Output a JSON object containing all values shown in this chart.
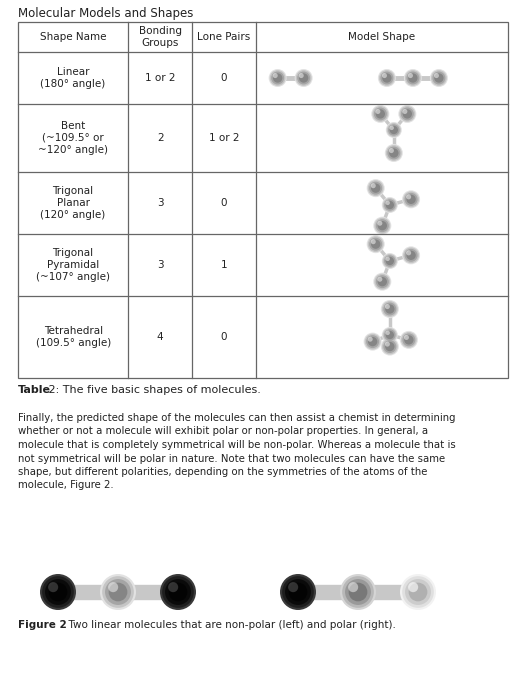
{
  "title": "Molecular Models and Shapes",
  "table_caption_bold": "Table",
  "table_caption_rest": " 2: The five basic shapes of molecules.",
  "figure_caption_bold": "Figure 2",
  "figure_caption_rest": "  Two linear molecules that are non-polar (left) and polar (right).",
  "col_headers": [
    "Shape Name",
    "Bonding\nGroups",
    "Lone Pairs",
    "Model Shape"
  ],
  "rows": [
    {
      "name": "Linear\n(180° angle)",
      "bonding": "1 or 2",
      "lone": "0",
      "shape": "linear"
    },
    {
      "name": "Bent\n(~109.5° or\n~120° angle)",
      "bonding": "2",
      "lone": "1 or 2",
      "shape": "bent"
    },
    {
      "name": "Trigonal\nPlanar\n(120° angle)",
      "bonding": "3",
      "lone": "0",
      "shape": "trigonal_planar"
    },
    {
      "name": "Trigonal\nPyramidal\n(~107° angle)",
      "bonding": "3",
      "lone": "1",
      "shape": "trigonal_pyramidal"
    },
    {
      "name": "Tetrahedral\n(109.5° angle)",
      "bonding": "4",
      "lone": "0",
      "shape": "tetrahedral"
    }
  ],
  "paragraph_lines": [
    "Finally, the predicted shape of the molecules can then assist a chemist in determining",
    "whether or not a molecule will exhibit polar or non-polar properties. In general, a",
    "molecule that is completely symmetrical will be non-polar. Whereas a molecule that is",
    "not symmetrical will be polar in nature. Note that two molecules can have the same",
    "shape, but different polarities, depending on the symmetries of the atoms of the",
    "molecule, Figure 2."
  ],
  "bond_color": "#c8c8c8",
  "bg_color": "#ffffff",
  "text_color": "#222222",
  "table_border_color": "#666666"
}
